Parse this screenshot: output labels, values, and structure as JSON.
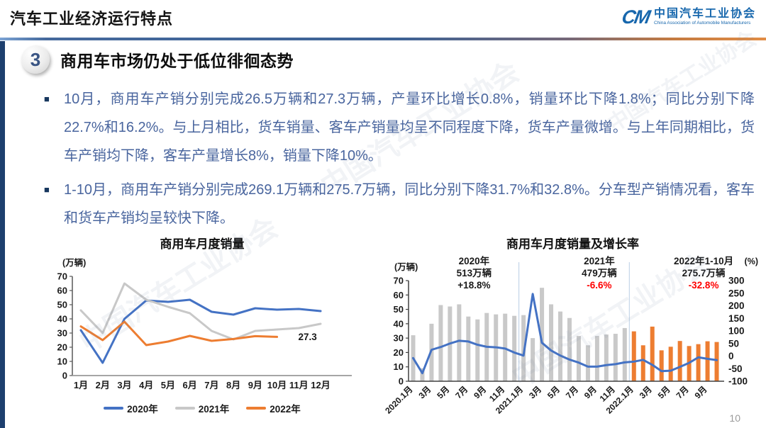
{
  "header": {
    "title": "汽车工业经济运行特点",
    "logo": {
      "mark": "CM",
      "org_cn": "中国汽车工业协会",
      "org_en": "China Association of Automobile Manufacturers"
    }
  },
  "section": {
    "number": "3",
    "title": "商用车市场仍处于低位徘徊态势"
  },
  "bullet_marker": "■",
  "bullets": [
    "10月，商用车产销分别完成26.5万辆和27.3万辆，产量环比增长0.8%，销量环比下降1.8%；同比分别下降22.7%和16.2%。与上月相比，货车销量、客车产销量均呈不同程度下降，货车产量微增。与上年同期相比，货车产销均下降，客车产量增长8%，销量下降10%。",
    "1-10月，商用车产销分别完成269.1万辆和275.7万辆，同比分别下降31.7%和32.8%。分车型产销情况看，客车和货车产销均呈较快下降。"
  ],
  "watermark": "中国汽车工业协会",
  "page_number": "10",
  "colors": {
    "accent_blue": "#4472c4",
    "accent_orange": "#ed7d31",
    "accent_gray": "#c9c9c9",
    "negative_red": "#ff0000",
    "body_text_blue": "#49659e"
  },
  "chart_data": [
    {
      "type": "line",
      "title": "商用车月度销量",
      "unit_label": "(万辆)",
      "categories": [
        "1月",
        "2月",
        "3月",
        "4月",
        "5月",
        "6月",
        "7月",
        "8月",
        "9月",
        "10月",
        "11月",
        "12月"
      ],
      "y_ticks": [
        0,
        10,
        20,
        30,
        40,
        50,
        60,
        70
      ],
      "ylim": [
        0,
        70
      ],
      "legend_position": "bottom",
      "series": [
        {
          "name": "2020年",
          "color": "#4472c4",
          "values": [
            32,
            9,
            40,
            53,
            52,
            53.5,
            45,
            43,
            47.5,
            46.5,
            47,
            45.5
          ]
        },
        {
          "name": "2021年",
          "color": "#c8c8c8",
          "values": [
            46,
            30,
            65,
            53.5,
            48.5,
            44,
            31.5,
            25.5,
            31.5,
            32.5,
            33.5,
            36.5
          ]
        },
        {
          "name": "2022年",
          "color": "#ed7d31",
          "values": [
            34.7,
            25,
            38,
            21.5,
            24,
            28,
            24.5,
            25.8,
            27.8,
            27.3
          ]
        }
      ],
      "point_label": {
        "text": "27.3",
        "series_index": 2,
        "point_index": 9
      }
    },
    {
      "type": "combo_bar_line",
      "title": "商用车月度销量及增长率",
      "left_unit_label": "(万辆)",
      "right_unit_label": "(%)",
      "left_y_ticks": [
        0,
        10,
        20,
        30,
        40,
        50,
        60,
        70
      ],
      "left_ylim": [
        0,
        70
      ],
      "right_y_ticks": [
        300,
        250,
        200,
        150,
        100,
        50,
        0,
        -50,
        -100
      ],
      "right_ylim": [
        -100,
        300
      ],
      "x_tick_labels": [
        "2020.1月",
        "3月",
        "5月",
        "7月",
        "9月",
        "11月",
        "2021.1月",
        "3月",
        "5月",
        "7月",
        "9月",
        "11月",
        "2022.1月",
        "3月",
        "5月",
        "7月",
        "9月"
      ],
      "bar_series": [
        {
          "name": "2020年",
          "color": "#c9c9c9",
          "values": [
            32,
            9,
            40,
            53,
            52,
            53.5,
            45,
            43,
            47.5,
            46.5,
            47,
            45.5
          ]
        },
        {
          "name": "2021年",
          "color": "#c9c9c9",
          "values": [
            46,
            30,
            65,
            53.5,
            48.5,
            44,
            31.5,
            25,
            31.5,
            32.5,
            33,
            37
          ]
        },
        {
          "name": "2022年",
          "color": "#ed7d31",
          "values": [
            34.7,
            25,
            38,
            21.5,
            24,
            28,
            24.5,
            25.8,
            27.8,
            27.3
          ]
        }
      ],
      "line_series": {
        "name": "增长率",
        "color": "#4472c4",
        "axis": "right",
        "values": [
          -8,
          -68,
          25,
          36,
          50,
          61,
          58,
          45,
          37,
          35,
          30,
          14,
          2,
          247,
          53,
          22,
          2,
          -14,
          -26,
          -42,
          -42,
          -36,
          -32,
          -25,
          -22,
          -15,
          -35,
          -60,
          -58,
          -43,
          -27,
          -5,
          -11,
          -16
        ]
      },
      "year_separators_at": [
        12,
        24
      ],
      "annotations": [
        {
          "line1": "2020年",
          "line2": "513万辆",
          "line3": "+18.8%",
          "line3_color": "#1a1a1a"
        },
        {
          "line1": "2021年",
          "line2": "479万辆",
          "line3": "-6.6%",
          "line3_color": "#ff0000"
        },
        {
          "line1": "2022年1-10月",
          "line2": "275.7万辆",
          "line3": "-32.8%",
          "line3_color": "#ff0000"
        }
      ]
    }
  ]
}
